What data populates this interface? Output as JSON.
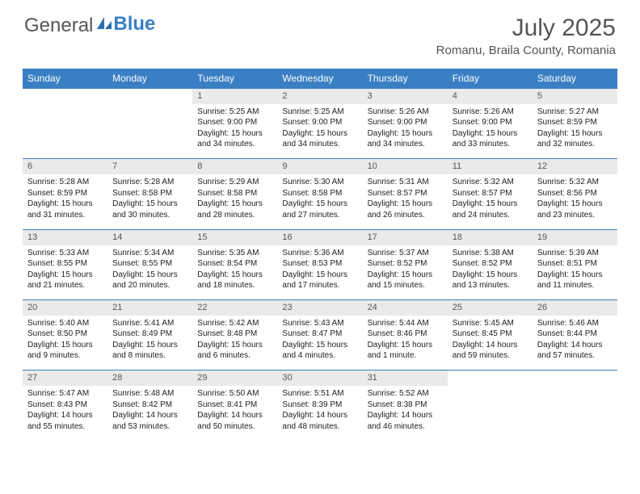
{
  "logo": {
    "text1": "General",
    "text2": "Blue"
  },
  "title": "July 2025",
  "location": "Romanu, Braila County, Romania",
  "colors": {
    "header_bg": "#3a7fc4",
    "header_text": "#ffffff",
    "daynum_bg": "#eaeaea",
    "border": "#3a7fc4",
    "body_text": "#222222",
    "logo_gray": "#555555",
    "logo_blue": "#3a7fc4"
  },
  "weekdays": [
    "Sunday",
    "Monday",
    "Tuesday",
    "Wednesday",
    "Thursday",
    "Friday",
    "Saturday"
  ],
  "weeks": [
    {
      "nums": [
        "",
        "",
        "1",
        "2",
        "3",
        "4",
        "5"
      ],
      "cells": [
        null,
        null,
        {
          "sunrise": "Sunrise: 5:25 AM",
          "sunset": "Sunset: 9:00 PM",
          "daylight": "Daylight: 15 hours and 34 minutes."
        },
        {
          "sunrise": "Sunrise: 5:25 AM",
          "sunset": "Sunset: 9:00 PM",
          "daylight": "Daylight: 15 hours and 34 minutes."
        },
        {
          "sunrise": "Sunrise: 5:26 AM",
          "sunset": "Sunset: 9:00 PM",
          "daylight": "Daylight: 15 hours and 34 minutes."
        },
        {
          "sunrise": "Sunrise: 5:26 AM",
          "sunset": "Sunset: 9:00 PM",
          "daylight": "Daylight: 15 hours and 33 minutes."
        },
        {
          "sunrise": "Sunrise: 5:27 AM",
          "sunset": "Sunset: 8:59 PM",
          "daylight": "Daylight: 15 hours and 32 minutes."
        }
      ]
    },
    {
      "nums": [
        "6",
        "7",
        "8",
        "9",
        "10",
        "11",
        "12"
      ],
      "cells": [
        {
          "sunrise": "Sunrise: 5:28 AM",
          "sunset": "Sunset: 8:59 PM",
          "daylight": "Daylight: 15 hours and 31 minutes."
        },
        {
          "sunrise": "Sunrise: 5:28 AM",
          "sunset": "Sunset: 8:58 PM",
          "daylight": "Daylight: 15 hours and 30 minutes."
        },
        {
          "sunrise": "Sunrise: 5:29 AM",
          "sunset": "Sunset: 8:58 PM",
          "daylight": "Daylight: 15 hours and 28 minutes."
        },
        {
          "sunrise": "Sunrise: 5:30 AM",
          "sunset": "Sunset: 8:58 PM",
          "daylight": "Daylight: 15 hours and 27 minutes."
        },
        {
          "sunrise": "Sunrise: 5:31 AM",
          "sunset": "Sunset: 8:57 PM",
          "daylight": "Daylight: 15 hours and 26 minutes."
        },
        {
          "sunrise": "Sunrise: 5:32 AM",
          "sunset": "Sunset: 8:57 PM",
          "daylight": "Daylight: 15 hours and 24 minutes."
        },
        {
          "sunrise": "Sunrise: 5:32 AM",
          "sunset": "Sunset: 8:56 PM",
          "daylight": "Daylight: 15 hours and 23 minutes."
        }
      ]
    },
    {
      "nums": [
        "13",
        "14",
        "15",
        "16",
        "17",
        "18",
        "19"
      ],
      "cells": [
        {
          "sunrise": "Sunrise: 5:33 AM",
          "sunset": "Sunset: 8:55 PM",
          "daylight": "Daylight: 15 hours and 21 minutes."
        },
        {
          "sunrise": "Sunrise: 5:34 AM",
          "sunset": "Sunset: 8:55 PM",
          "daylight": "Daylight: 15 hours and 20 minutes."
        },
        {
          "sunrise": "Sunrise: 5:35 AM",
          "sunset": "Sunset: 8:54 PM",
          "daylight": "Daylight: 15 hours and 18 minutes."
        },
        {
          "sunrise": "Sunrise: 5:36 AM",
          "sunset": "Sunset: 8:53 PM",
          "daylight": "Daylight: 15 hours and 17 minutes."
        },
        {
          "sunrise": "Sunrise: 5:37 AM",
          "sunset": "Sunset: 8:52 PM",
          "daylight": "Daylight: 15 hours and 15 minutes."
        },
        {
          "sunrise": "Sunrise: 5:38 AM",
          "sunset": "Sunset: 8:52 PM",
          "daylight": "Daylight: 15 hours and 13 minutes."
        },
        {
          "sunrise": "Sunrise: 5:39 AM",
          "sunset": "Sunset: 8:51 PM",
          "daylight": "Daylight: 15 hours and 11 minutes."
        }
      ]
    },
    {
      "nums": [
        "20",
        "21",
        "22",
        "23",
        "24",
        "25",
        "26"
      ],
      "cells": [
        {
          "sunrise": "Sunrise: 5:40 AM",
          "sunset": "Sunset: 8:50 PM",
          "daylight": "Daylight: 15 hours and 9 minutes."
        },
        {
          "sunrise": "Sunrise: 5:41 AM",
          "sunset": "Sunset: 8:49 PM",
          "daylight": "Daylight: 15 hours and 8 minutes."
        },
        {
          "sunrise": "Sunrise: 5:42 AM",
          "sunset": "Sunset: 8:48 PM",
          "daylight": "Daylight: 15 hours and 6 minutes."
        },
        {
          "sunrise": "Sunrise: 5:43 AM",
          "sunset": "Sunset: 8:47 PM",
          "daylight": "Daylight: 15 hours and 4 minutes."
        },
        {
          "sunrise": "Sunrise: 5:44 AM",
          "sunset": "Sunset: 8:46 PM",
          "daylight": "Daylight: 15 hours and 1 minute."
        },
        {
          "sunrise": "Sunrise: 5:45 AM",
          "sunset": "Sunset: 8:45 PM",
          "daylight": "Daylight: 14 hours and 59 minutes."
        },
        {
          "sunrise": "Sunrise: 5:46 AM",
          "sunset": "Sunset: 8:44 PM",
          "daylight": "Daylight: 14 hours and 57 minutes."
        }
      ]
    },
    {
      "nums": [
        "27",
        "28",
        "29",
        "30",
        "31",
        "",
        ""
      ],
      "cells": [
        {
          "sunrise": "Sunrise: 5:47 AM",
          "sunset": "Sunset: 8:43 PM",
          "daylight": "Daylight: 14 hours and 55 minutes."
        },
        {
          "sunrise": "Sunrise: 5:48 AM",
          "sunset": "Sunset: 8:42 PM",
          "daylight": "Daylight: 14 hours and 53 minutes."
        },
        {
          "sunrise": "Sunrise: 5:50 AM",
          "sunset": "Sunset: 8:41 PM",
          "daylight": "Daylight: 14 hours and 50 minutes."
        },
        {
          "sunrise": "Sunrise: 5:51 AM",
          "sunset": "Sunset: 8:39 PM",
          "daylight": "Daylight: 14 hours and 48 minutes."
        },
        {
          "sunrise": "Sunrise: 5:52 AM",
          "sunset": "Sunset: 8:38 PM",
          "daylight": "Daylight: 14 hours and 46 minutes."
        },
        null,
        null
      ]
    }
  ]
}
